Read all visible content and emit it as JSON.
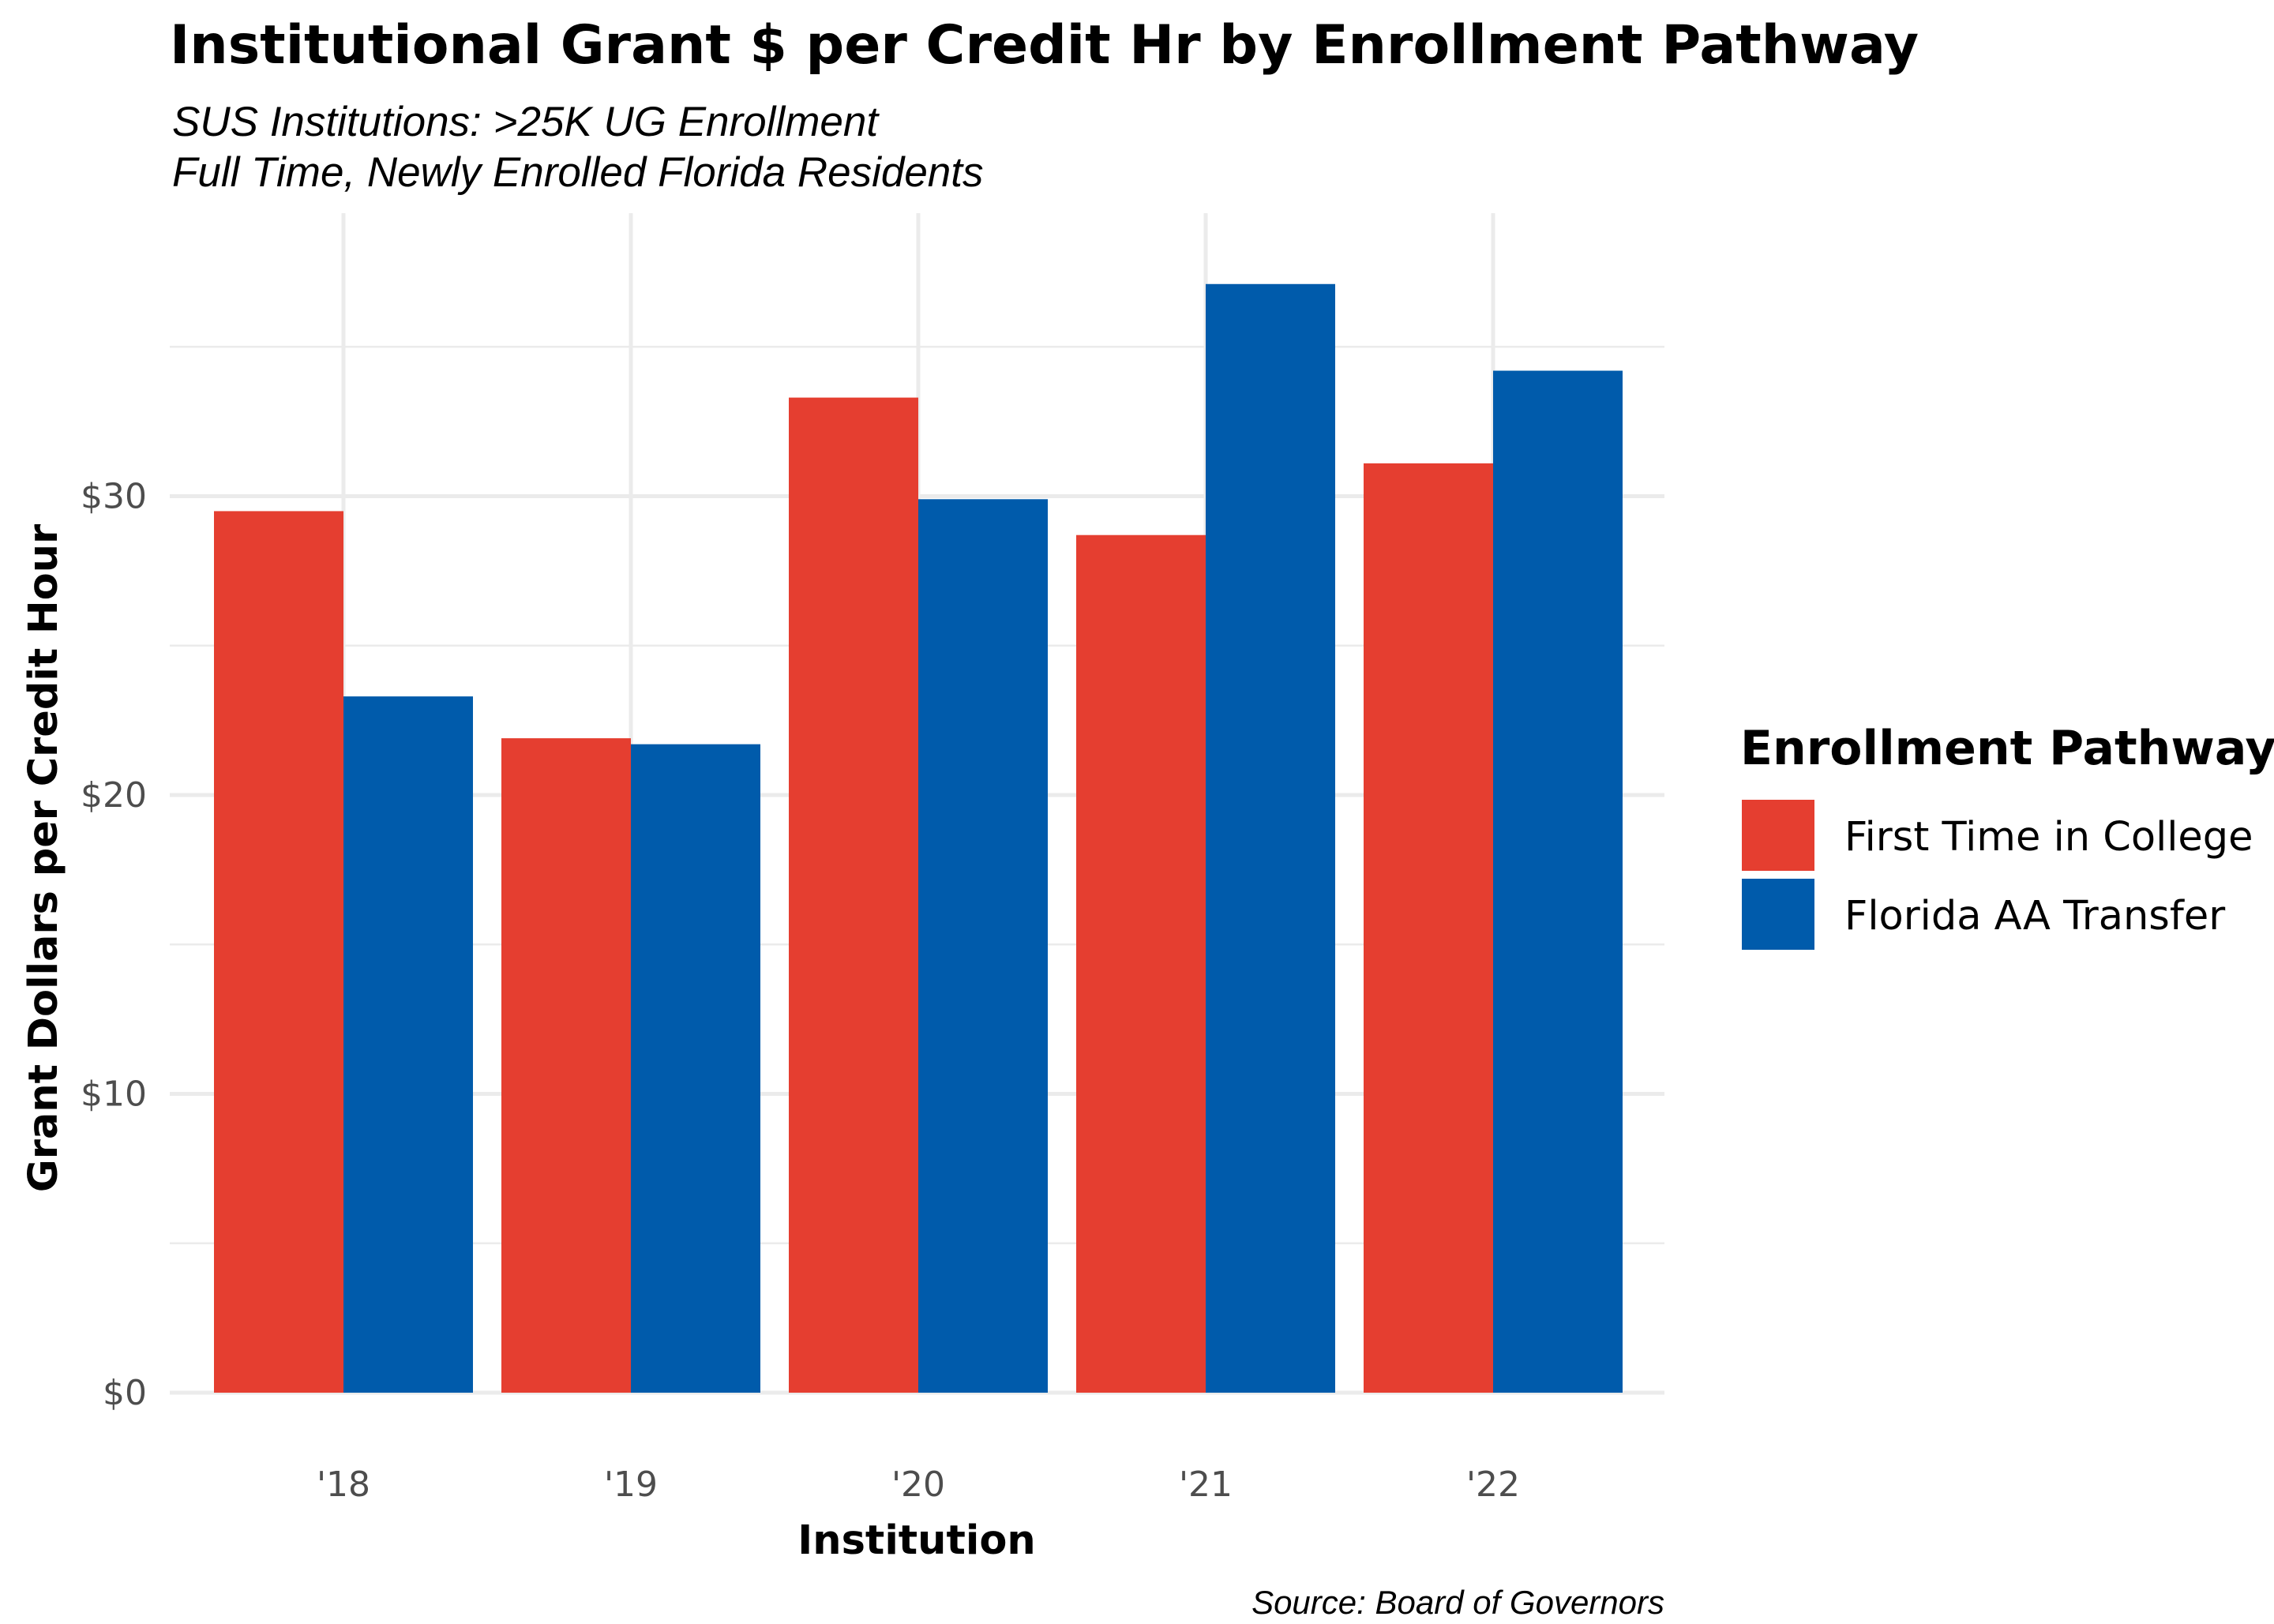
{
  "colors": {
    "first_time": "#e53e30",
    "aa_transfer": "#005bab",
    "grid": "#ebebeb"
  },
  "chart_data": {
    "type": "bar",
    "title": "Institutional Grant $ per Credit Hr by Enrollment Pathway",
    "subtitle_lines": [
      "SUS Institutions: >25K UG Enrollment",
      "Full Time, Newly Enrolled Florida Residents"
    ],
    "xlabel": "Institution",
    "ylabel": "Grant Dollars per Credit Hour",
    "caption": "Source: Board of Governors",
    "categories": [
      "'18",
      "'19",
      "'20",
      "'21",
      "'22"
    ],
    "series": [
      {
        "name": "First Time in College",
        "color": "#e53e30",
        "values": [
          29.5,
          21.9,
          33.3,
          28.7,
          31.1
        ]
      },
      {
        "name": "Florida AA Transfer",
        "color": "#005bab",
        "values": [
          23.3,
          21.7,
          29.9,
          37.1,
          34.2
        ]
      }
    ],
    "ylim": [
      0,
      39
    ],
    "yticks": [
      0,
      10,
      20,
      30
    ],
    "ytick_labels": [
      "$0",
      "$10",
      "$20",
      "$30"
    ],
    "grid": true,
    "legend": {
      "title": "Enrollment Pathway",
      "position": "right"
    }
  }
}
